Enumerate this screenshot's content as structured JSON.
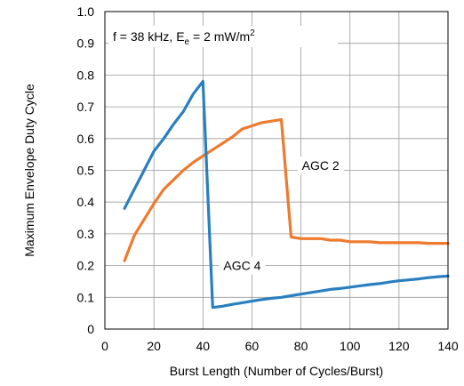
{
  "chart_data": {
    "type": "line",
    "title": "",
    "xlabel": "Burst Length (Number of Cycles/Burst)",
    "ylabel": "Maximum Envelope Duty Cycle",
    "xlim": [
      0,
      140
    ],
    "ylim": [
      0,
      1.0
    ],
    "xticks": [
      0,
      20,
      40,
      60,
      80,
      100,
      120,
      140
    ],
    "yticks": [
      0,
      0.1,
      0.2,
      0.3,
      0.4,
      0.5,
      0.6,
      0.7,
      0.8,
      0.9,
      1.0
    ],
    "xtick_labels": [
      "0",
      "20",
      "40",
      "60",
      "80",
      "100",
      "120",
      "140"
    ],
    "ytick_labels": [
      "0",
      "0.1",
      "0.2",
      "0.3",
      "0.4",
      "0.5",
      "0.6",
      "0.7",
      "0.8",
      "0.9",
      "1.0"
    ],
    "grid": true,
    "condition_box": {
      "f_text": "f = 38 kHz, E",
      "e_sub": "e",
      "e_text": " = 2 mW/m",
      "e_sup": "2"
    },
    "series": [
      {
        "name": "AGC 2",
        "color": "#EE7A2E",
        "x": [
          8,
          12,
          16,
          20,
          24,
          28,
          32,
          36,
          40,
          44,
          48,
          52,
          56,
          60,
          64,
          68,
          72,
          76,
          80,
          84,
          88,
          92,
          96,
          100,
          104,
          108,
          112,
          116,
          120,
          124,
          128,
          132,
          136,
          140
        ],
        "y": [
          0.215,
          0.295,
          0.345,
          0.395,
          0.44,
          0.47,
          0.5,
          0.525,
          0.545,
          0.565,
          0.585,
          0.605,
          0.63,
          0.64,
          0.65,
          0.655,
          0.66,
          0.29,
          0.285,
          0.285,
          0.285,
          0.28,
          0.28,
          0.275,
          0.275,
          0.275,
          0.272,
          0.272,
          0.272,
          0.272,
          0.272,
          0.27,
          0.27,
          0.27
        ]
      },
      {
        "name": "AGC 4",
        "color": "#2A7FBF",
        "x": [
          8,
          12,
          16,
          20,
          24,
          28,
          32,
          36,
          40,
          44,
          48,
          52,
          56,
          60,
          64,
          68,
          72,
          76,
          80,
          84,
          88,
          92,
          96,
          100,
          104,
          108,
          112,
          116,
          120,
          124,
          128,
          132,
          136,
          140
        ],
        "y": [
          0.38,
          0.44,
          0.5,
          0.56,
          0.6,
          0.645,
          0.685,
          0.74,
          0.78,
          0.068,
          0.072,
          0.078,
          0.083,
          0.088,
          0.093,
          0.097,
          0.1,
          0.105,
          0.11,
          0.115,
          0.12,
          0.125,
          0.128,
          0.132,
          0.136,
          0.14,
          0.143,
          0.148,
          0.152,
          0.155,
          0.158,
          0.162,
          0.165,
          0.167
        ]
      }
    ],
    "annotations": [
      {
        "text": "AGC 2",
        "series": "AGC 2",
        "x": 88,
        "y": 0.515
      },
      {
        "text": "AGC 4",
        "series": "AGC 4",
        "x": 56,
        "y": 0.2
      }
    ]
  }
}
